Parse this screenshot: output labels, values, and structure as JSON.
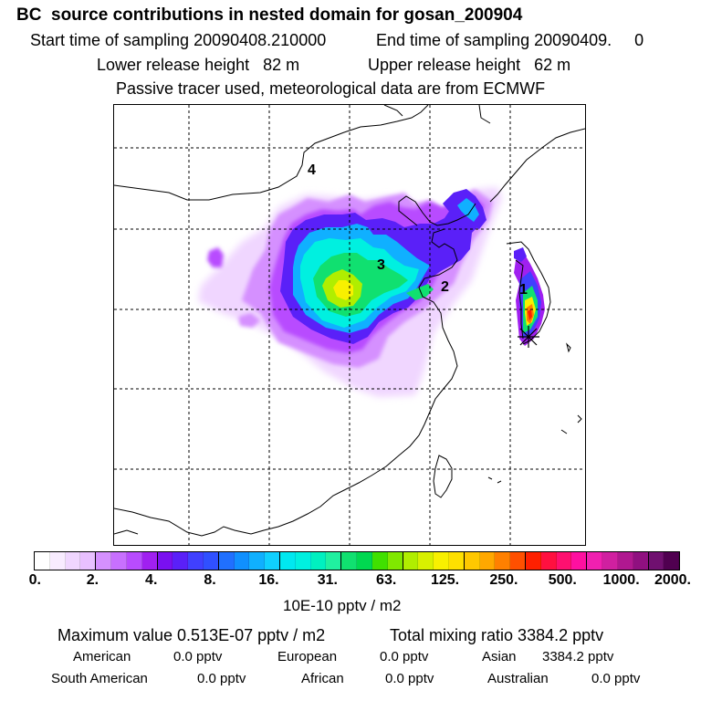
{
  "header": {
    "title": "BC  source contributions in nested domain for gosan_200904",
    "start_label": "Start time of sampling 20090408.210000",
    "end_label": "End time of sampling 20090409.     0",
    "lower_label": "Lower release height   82 m",
    "upper_label": "Upper release height   62 m",
    "info": "Passive tracer used, meteorological data are from ECMWF"
  },
  "map": {
    "region_labels": [
      "4",
      "3",
      "2",
      "1"
    ],
    "receptor_marker": "star-marker"
  },
  "colorbar": {
    "tick_labels": [
      "0.",
      "2.",
      "4.",
      "8.",
      "16.",
      "31.",
      "63.",
      "125.",
      "250.",
      "500.",
      "1000.",
      "2000."
    ],
    "units": "10E-10 pptv / m2",
    "colors": [
      "#ffffff",
      "#f8ebff",
      "#f0d6ff",
      "#e8c0ff",
      "#d590ff",
      "#c870ff",
      "#b84cff",
      "#a020f0",
      "#7a10f0",
      "#5a20f8",
      "#4040ff",
      "#3050ff",
      "#2070ff",
      "#1090ff",
      "#10b0ff",
      "#10d0ff",
      "#00e8f0",
      "#00f0e0",
      "#00f0c0",
      "#20f0a0",
      "#10e070",
      "#00d850",
      "#40e000",
      "#80e800",
      "#b0ee00",
      "#d8f000",
      "#f8f000",
      "#ffe000",
      "#ffc800",
      "#ffa800",
      "#ff8000",
      "#ff5000",
      "#ff2000",
      "#ff1040",
      "#ff1070",
      "#ff10a0",
      "#f020b0",
      "#d020a0",
      "#b01890",
      "#901080",
      "#701070",
      "#500050"
    ]
  },
  "stats": {
    "max_label": "Maximum value  0.513E-07 pptv / m2",
    "total_label": "Total mixing ratio     3384.2 pptv",
    "american_label": "American",
    "american_value": "0.0 pptv",
    "european_label": "European",
    "european_value": "0.0 pptv",
    "asian_label": "Asian",
    "asian_value": "3384.2 pptv",
    "south_american_label": "South American",
    "south_american_value": "0.0 pptv",
    "african_label": "African",
    "african_value": "0.0 pptv",
    "australian_label": "Australian",
    "australian_value": "0.0 pptv"
  }
}
